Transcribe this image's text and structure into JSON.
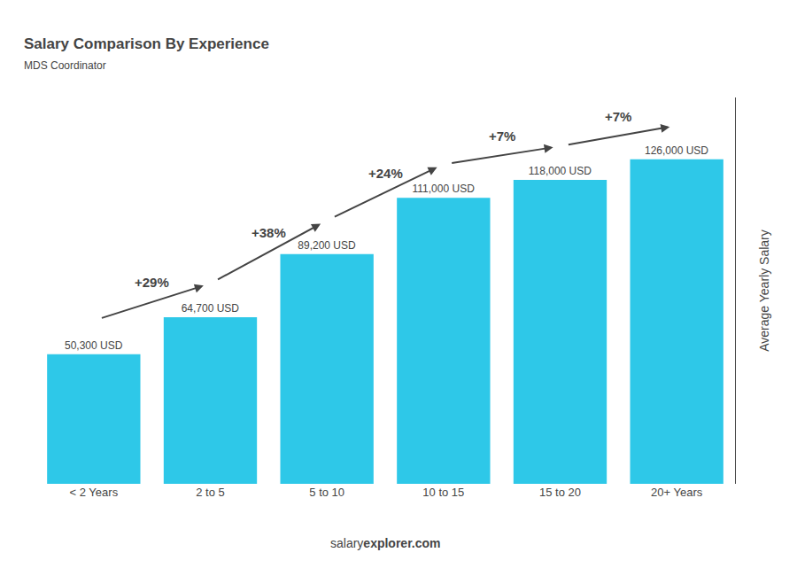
{
  "chart_data": {
    "type": "bar",
    "title": "Salary Comparison By Experience",
    "subtitle": "MDS Coordinator",
    "ylabel": "Average Yearly Salary",
    "footer": [
      "salary",
      "explorer.com"
    ],
    "categories": [
      "< 2 Years",
      "2 to 5",
      "5 to 10",
      "10 to 15",
      "15 to 20",
      "20+ Years"
    ],
    "values": [
      50300,
      64700,
      89200,
      111000,
      118000,
      126000
    ],
    "value_labels": [
      "50,300 USD",
      "64,700 USD",
      "89,200 USD",
      "111,000 USD",
      "118,000 USD",
      "126,000 USD"
    ],
    "data_labels": true,
    "annotations": [
      "+29%",
      "+38%",
      "+24%",
      "+7%",
      "+7%"
    ],
    "color": "#2EC8E8",
    "ylim": [
      0,
      150000
    ],
    "tick_labels": "x",
    "grid": false
  }
}
